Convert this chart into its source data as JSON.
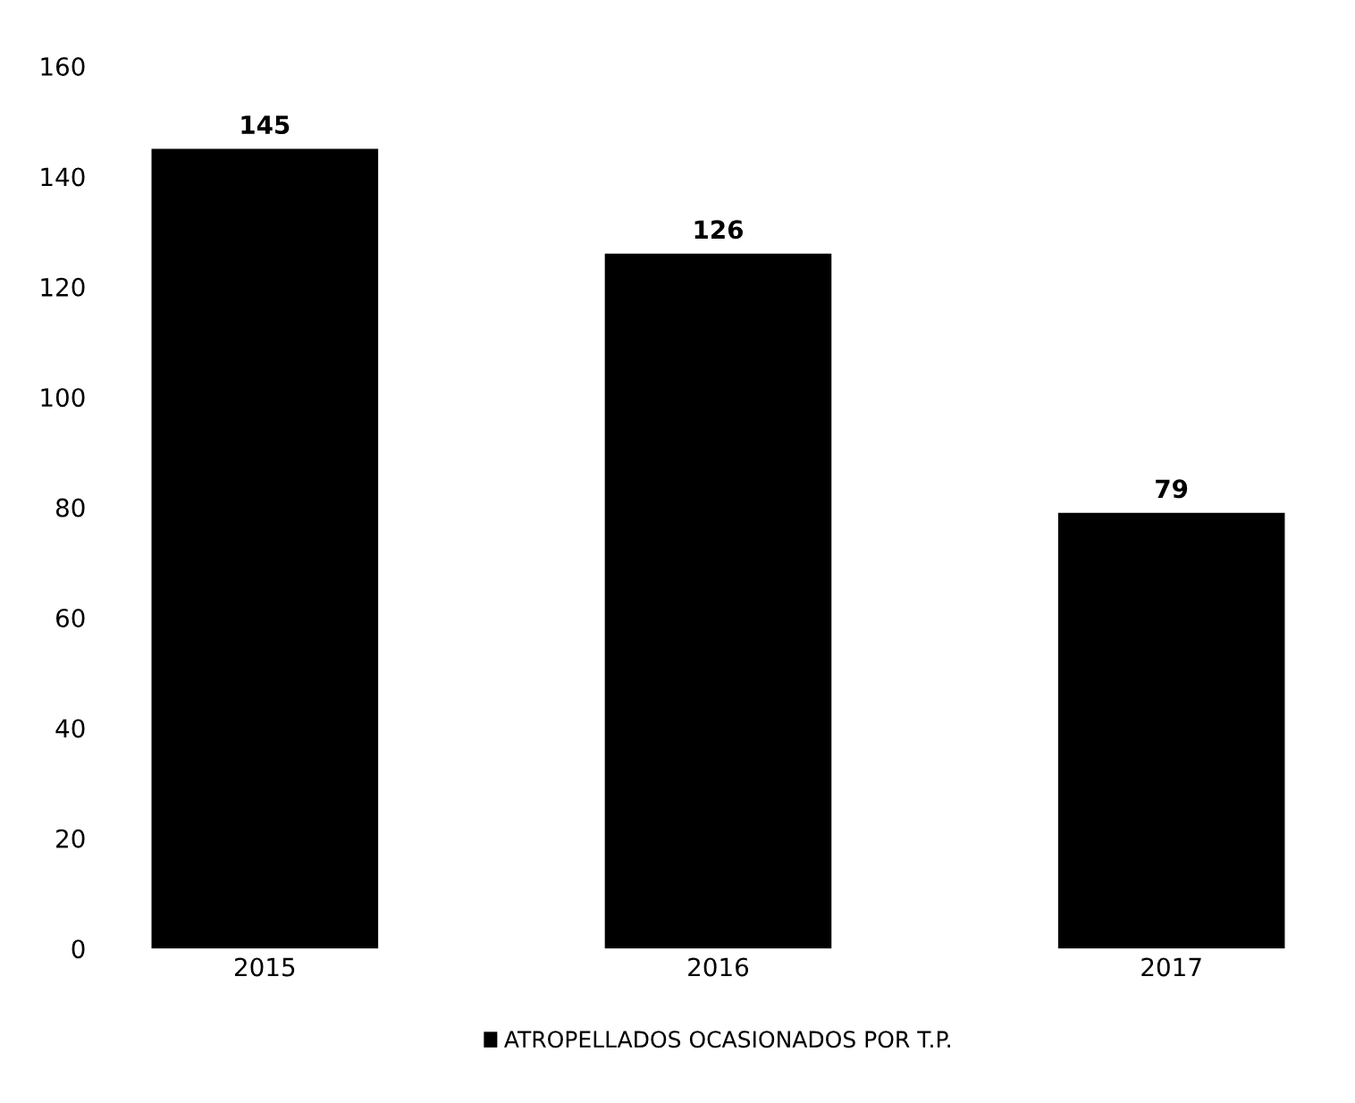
{
  "chart_data": {
    "type": "bar",
    "categories": [
      "2015",
      "2016",
      "2017"
    ],
    "series": [
      {
        "name": "ATROPELLADOS OCASIONADOS POR T.P.",
        "color": "#000000",
        "values": [
          145,
          126,
          79
        ]
      }
    ],
    "ylim": [
      0,
      160
    ],
    "yticks": [
      0,
      20,
      40,
      60,
      80,
      100,
      120,
      140,
      160
    ],
    "data_labels": true,
    "legend": "bottom",
    "grid": false
  }
}
